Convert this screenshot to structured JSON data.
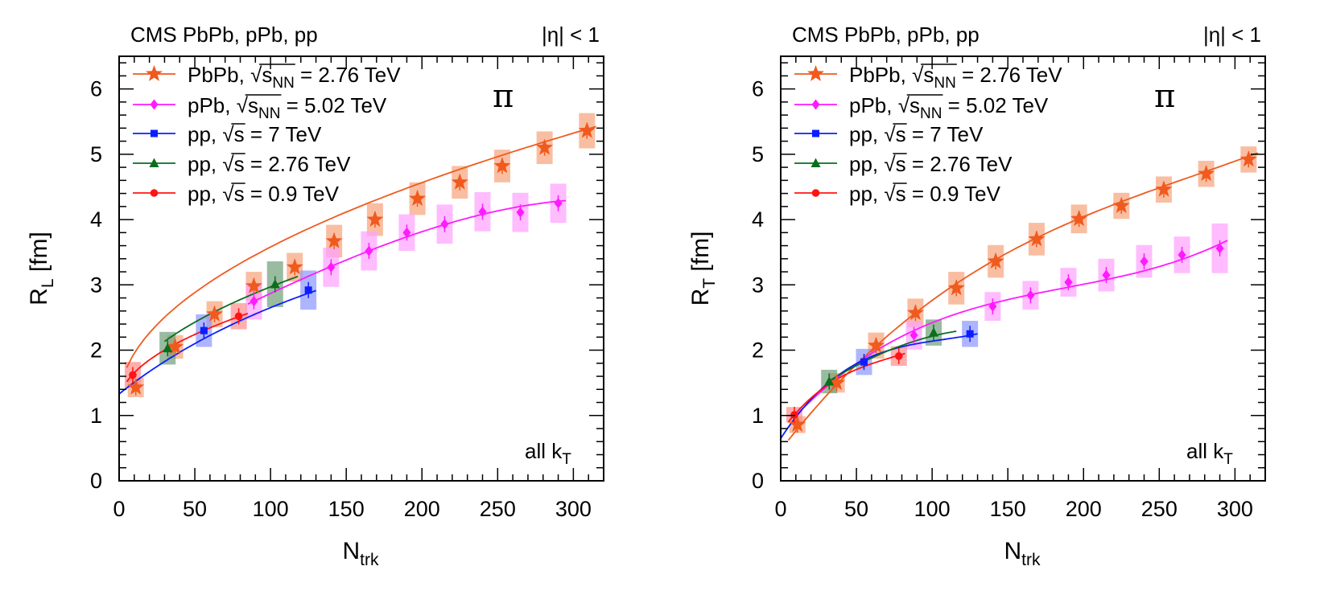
{
  "colors": {
    "PbPb": "#f05a1e",
    "pPb": "#ff1aff",
    "pp7": "#0a1eff",
    "pp276": "#0a6e1e",
    "pp09": "#ff1414",
    "PbPb_box": "#f6a27a",
    "pPb_box": "#ffa0ff",
    "pp7_box": "#8c96ff",
    "pp276_box": "#6e9e78",
    "pp09_box": "#ff8c8c"
  },
  "legend": {
    "PbPb": {
      "pre": "PbPb, ",
      "rad": "s",
      "sub": "NN",
      "post": " = 2.76 TeV"
    },
    "pPb": {
      "pre": "pPb, ",
      "rad": "s",
      "sub": "NN",
      "post": " = 5.02 TeV"
    },
    "pp7": {
      "pre": "pp, ",
      "rad": "s",
      "sub": "",
      "post": " = 7 TeV"
    },
    "pp276": {
      "pre": "pp, ",
      "rad": "s",
      "sub": "",
      "post": " = 2.76 TeV"
    },
    "pp09": {
      "pre": "pp, ",
      "rad": "s",
      "sub": "",
      "post": " = 0.9 TeV"
    }
  },
  "chart_data": [
    {
      "type": "scatter",
      "title": "CMS PbPb, pPb, pp",
      "eta_label": "|η| < 1",
      "particle": "π",
      "note": "all k",
      "note_sub": "T",
      "ylabel_main": "R",
      "ylabel_sub": "L",
      "ylabel_unit": " [fm]",
      "xlabel_main": "N",
      "xlabel_sub": "trk",
      "xlim": [
        0,
        320
      ],
      "ylim": [
        0,
        6.5
      ],
      "xticks": [
        "0",
        "50",
        "100",
        "150",
        "200",
        "250",
        "300"
      ],
      "yticks": [
        "0",
        "1",
        "2",
        "3",
        "4",
        "5",
        "6"
      ],
      "series": [
        {
          "key": "PbPb",
          "name": "PbPb, √sNN = 2.76 TeV",
          "marker": "star",
          "x": [
            11,
            37,
            63,
            89,
            116,
            142,
            169,
            197,
            225,
            253,
            281,
            309
          ],
          "y": [
            1.43,
            2.05,
            2.55,
            2.98,
            3.27,
            3.67,
            4.0,
            4.32,
            4.57,
            4.82,
            5.1,
            5.36
          ],
          "sys": [
            0.15,
            0.18,
            0.2,
            0.22,
            0.22,
            0.25,
            0.25,
            0.25,
            0.25,
            0.25,
            0.25,
            0.27
          ],
          "fit_x": [
            5,
            315
          ],
          "fit_type": "sqrt",
          "fit": [
            1.2,
            0.238
          ]
        },
        {
          "key": "pPb",
          "name": "pPb, √sNN = 5.02 TeV",
          "marker": "diamond",
          "x": [
            89,
            140,
            165,
            190,
            215,
            240,
            265,
            290
          ],
          "y": [
            2.75,
            3.27,
            3.52,
            3.8,
            3.93,
            4.12,
            4.11,
            4.25
          ],
          "sys": [
            0.28,
            0.3,
            0.3,
            0.28,
            0.3,
            0.3,
            0.3,
            0.3
          ],
          "fit_x": [
            85,
            295
          ],
          "fit_type": "cubic",
          "fit_pts": [
            [
              89,
              2.75
            ],
            [
              165,
              3.52
            ],
            [
              240,
              4.08
            ],
            [
              290,
              4.28
            ]
          ]
        },
        {
          "key": "pp7",
          "name": "pp, √s = 7 TeV",
          "marker": "square",
          "x": [
            56,
            125
          ],
          "y": [
            2.3,
            2.92
          ],
          "sys": [
            0.25,
            0.3
          ],
          "fit_x": [
            0,
            130
          ],
          "fit_type": "log",
          "fit": [
            1.33,
            0.0185
          ]
        },
        {
          "key": "pp276",
          "name": "pp, √s = 2.76 TeV",
          "marker": "triangle",
          "x": [
            32,
            103
          ],
          "y": [
            2.03,
            3.01
          ],
          "sys": [
            0.25,
            0.35
          ],
          "fit_x": [
            30,
            118
          ],
          "fit_type": "sqrt",
          "fit": [
            1.12,
            0.185
          ]
        },
        {
          "key": "pp09",
          "name": "pp, √s = 0.9 TeV",
          "marker": "circle",
          "x": [
            9,
            79
          ],
          "y": [
            1.62,
            2.52
          ],
          "sys": [
            0.2,
            0.2
          ],
          "fit_x": [
            5,
            85
          ],
          "fit_type": "sqrt",
          "fit": [
            1.18,
            0.15
          ]
        }
      ]
    },
    {
      "type": "scatter",
      "title": "CMS PbPb, pPb, pp",
      "eta_label": "|η| < 1",
      "particle": "π",
      "note": "all k",
      "note_sub": "T",
      "ylabel_main": "R",
      "ylabel_sub": "T",
      "ylabel_unit": " [fm]",
      "xlabel_main": "N",
      "xlabel_sub": "trk",
      "xlim": [
        0,
        320
      ],
      "ylim": [
        0,
        6.5
      ],
      "xticks": [
        "0",
        "50",
        "100",
        "150",
        "200",
        "250",
        "300"
      ],
      "yticks": [
        "0",
        "1",
        "2",
        "3",
        "4",
        "5",
        "6"
      ],
      "series": [
        {
          "key": "PbPb",
          "name": "PbPb, √sNN = 2.76 TeV",
          "marker": "star",
          "x": [
            11,
            37,
            63,
            89,
            116,
            142,
            169,
            197,
            225,
            253,
            281,
            309
          ],
          "y": [
            0.86,
            1.5,
            2.07,
            2.57,
            2.95,
            3.36,
            3.7,
            4.01,
            4.21,
            4.46,
            4.7,
            4.92
          ],
          "sys": [
            0.13,
            0.15,
            0.2,
            0.22,
            0.25,
            0.25,
            0.25,
            0.22,
            0.2,
            0.2,
            0.2,
            0.2
          ],
          "fit_x": [
            5,
            315
          ],
          "fit_type": "cubic",
          "fit_pts": [
            [
              5,
              0.62
            ],
            [
              60,
              2.0
            ],
            [
              180,
              3.84
            ],
            [
              315,
              5.02
            ]
          ]
        },
        {
          "key": "pPb",
          "name": "pPb, √sNN = 5.02 TeV",
          "marker": "diamond",
          "x": [
            88,
            140,
            165,
            190,
            215,
            240,
            265,
            290
          ],
          "y": [
            2.23,
            2.67,
            2.84,
            3.04,
            3.15,
            3.36,
            3.46,
            3.56
          ],
          "sys": [
            0.22,
            0.22,
            0.22,
            0.22,
            0.25,
            0.25,
            0.28,
            0.38
          ],
          "fit_x": [
            8,
            295
          ],
          "fit_type": "cubic",
          "fit_pts": [
            [
              8,
              0.95
            ],
            [
              60,
              1.95
            ],
            [
              165,
              2.85
            ],
            [
              295,
              3.68
            ]
          ]
        },
        {
          "key": "pp7",
          "name": "pp, √s = 7 TeV",
          "marker": "square",
          "x": [
            55,
            125
          ],
          "y": [
            1.82,
            2.25
          ],
          "sys": [
            0.2,
            0.2
          ],
          "fit_x": [
            0,
            130
          ],
          "fit_type": "cubic",
          "fit_pts": [
            [
              0,
              0.65
            ],
            [
              40,
              1.65
            ],
            [
              90,
              2.1
            ],
            [
              130,
              2.25
            ]
          ]
        },
        {
          "key": "pp276",
          "name": "pp, √s = 2.76 TeV",
          "marker": "triangle",
          "x": [
            32,
            101
          ],
          "y": [
            1.52,
            2.27
          ],
          "sys": [
            0.18,
            0.2
          ],
          "fit_x": [
            30,
            116
          ],
          "fit_type": "cubic",
          "fit_pts": [
            [
              30,
              1.5
            ],
            [
              60,
              1.88
            ],
            [
              90,
              2.15
            ],
            [
              116,
              2.29
            ]
          ]
        },
        {
          "key": "pp09",
          "name": "pp, √s = 0.9 TeV",
          "marker": "circle",
          "x": [
            9,
            78
          ],
          "y": [
            1.01,
            1.91
          ],
          "sys": [
            0.12,
            0.15
          ],
          "fit_x": [
            5,
            82
          ],
          "fit_type": "cubic",
          "fit_pts": [
            [
              5,
              0.9
            ],
            [
              30,
              1.45
            ],
            [
              55,
              1.75
            ],
            [
              82,
              1.95
            ]
          ]
        }
      ]
    }
  ]
}
